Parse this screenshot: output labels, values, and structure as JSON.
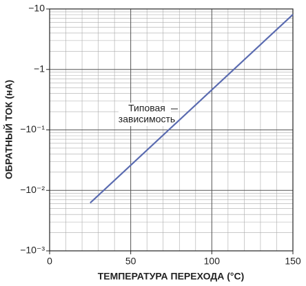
{
  "chart_data": {
    "type": "line",
    "log_y": true,
    "grid": true,
    "xlabel": "ТЕМПЕРАТУРА ПЕРЕХОДА (°C)",
    "ylabel": "ОБРАТНЫЙ ТОК (нА)",
    "annotation": [
      "Типовая",
      "зависимость"
    ],
    "x": [
      25,
      150
    ],
    "series": [
      {
        "color": "#5a6bb0",
        "values": [
          -0.0062,
          -8.1
        ]
      }
    ],
    "xlim": [
      0,
      150
    ],
    "xticks": [
      0,
      50,
      100,
      150
    ],
    "ylim": [
      -0.001,
      -10
    ],
    "yticks": [
      {
        "value": -0.001,
        "label": "−10⁻³"
      },
      {
        "value": -0.01,
        "label": "−10⁻²"
      },
      {
        "value": -0.1,
        "label": "−10⁻¹"
      },
      {
        "value": -1,
        "label": "−1"
      },
      {
        "value": -10,
        "label": "−10"
      }
    ]
  }
}
